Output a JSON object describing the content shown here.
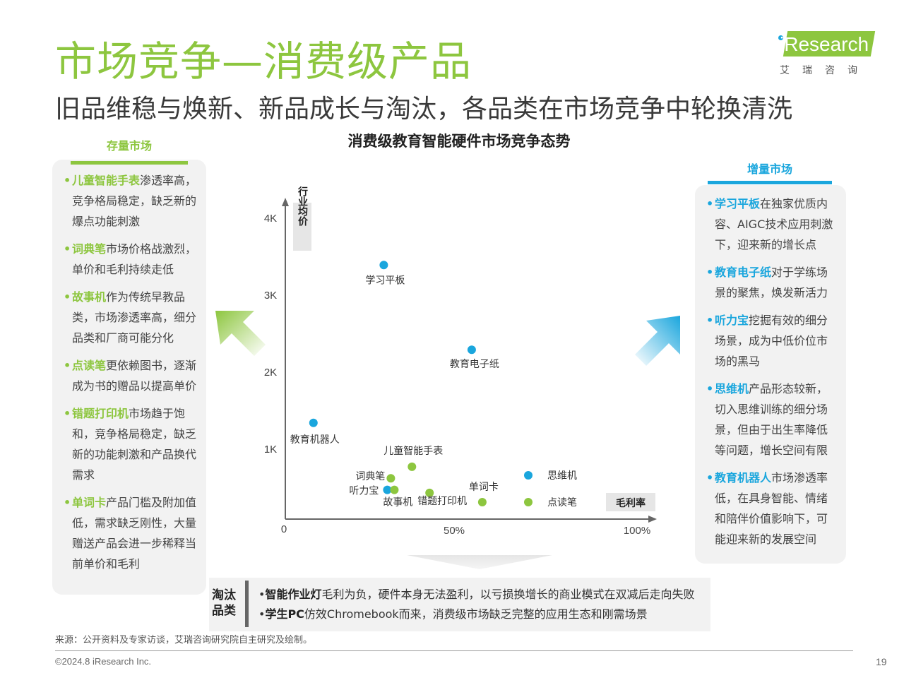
{
  "header": {
    "title": "市场竞争—消费级产品",
    "subtitle": "旧品维稳与焕新、新品成长与淘汰，各品类在市场竞争中轮换清洗"
  },
  "logo": {
    "text": "iResearch",
    "cn": "艾瑞咨询"
  },
  "colors": {
    "green": "#8dc63f",
    "blue": "#1aa6dd",
    "text": "#333333",
    "panel": "#f2f2f2"
  },
  "left_panel": {
    "title": "存量市场",
    "items": [
      {
        "bullet": "•",
        "highlight": "儿童智能手表",
        "text": "渗透率高，竞争格局稳定，缺乏新的爆点功能刺激"
      },
      {
        "bullet": "•",
        "highlight": "词典笔",
        "text": "市场价格战激烈，单价和毛利持续走低"
      },
      {
        "bullet": "•",
        "highlight": "故事机",
        "text": "作为传统早教品类，市场渗透率高，细分品类和厂商可能分化"
      },
      {
        "bullet": "•",
        "highlight": "点读笔",
        "text": "更依赖图书，逐渐成为书的赠品以提高单价"
      },
      {
        "bullet": "•",
        "highlight": "错题打印机",
        "text": "市场趋于饱和，竞争格局稳定，缺乏新的功能刺激和产品换代需求"
      },
      {
        "bullet": "•",
        "highlight": "单词卡",
        "text": "产品门槛及附加值低，需求缺乏刚性，大量赠送产品会进一步稀释当前单价和毛利"
      }
    ]
  },
  "right_panel": {
    "title": "增量市场",
    "items": [
      {
        "bullet": "•",
        "highlight": "学习平板",
        "text": "在独家优质内容、AIGC技术应用刺激下，迎来新的增长点"
      },
      {
        "bullet": "•",
        "highlight": "教育电子纸",
        "text": "对于学练场景的聚焦，焕发新活力"
      },
      {
        "bullet": "•",
        "highlight": "听力宝",
        "text": "挖掘有效的细分场景，成为中低价位市场的黑马"
      },
      {
        "bullet": "•",
        "highlight": "思维机",
        "text": "产品形态较新，切入思维训练的细分场景，但由于出生率降低等问题，增长空间有限"
      },
      {
        "bullet": "•",
        "highlight": "教育机器人",
        "text": "市场渗透率低，在具身智能、情绪和陪伴价值影响下，可能迎来新的发展空间"
      }
    ]
  },
  "chart_data": {
    "type": "scatter",
    "title": "消费级教育智能硬件市场竞争态势",
    "xlabel": "毛利率",
    "ylabel": "行业均价",
    "x_ticks": [
      "0",
      "50%",
      "100%"
    ],
    "y_ticks": [
      "1K",
      "2K",
      "3K",
      "4K"
    ],
    "xlim": [
      0,
      100
    ],
    "ylim": [
      0,
      4000
    ],
    "legend": {
      "position": "bottom-right",
      "entries": [
        "思维机",
        "点读笔"
      ]
    },
    "series": [
      {
        "color": "#1aa6dd",
        "points": [
          {
            "label": "学习平板",
            "x": 28,
            "y": 3300
          },
          {
            "label": "教育电子纸",
            "x": 53,
            "y": 2200
          },
          {
            "label": "教育机器人",
            "x": 8,
            "y": 1250
          },
          {
            "label": "听力宝",
            "x": 29,
            "y": 380
          }
        ]
      },
      {
        "color": "#8dc63f",
        "points": [
          {
            "label": "儿童智能手表",
            "x": 36,
            "y": 680
          },
          {
            "label": "词典笔",
            "x": 30,
            "y": 530
          },
          {
            "label": "故事机",
            "x": 31,
            "y": 380
          },
          {
            "label": "错题打印机",
            "x": 41,
            "y": 340
          },
          {
            "label": "单词卡",
            "x": 56,
            "y": 220
          }
        ]
      }
    ]
  },
  "elimination": {
    "label": "淘汰品类",
    "items": [
      {
        "bullet": "•",
        "highlight": "智能作业灯",
        "text": "毛利为负，硬件本身无法盈利，以亏损换增长的商业模式在双减后走向失败"
      },
      {
        "bullet": "•",
        "highlight": "学生PC",
        "text": "仿效Chromebook而来，消费级市场缺乏完整的应用生态和刚需场景"
      }
    ]
  },
  "footer": {
    "source": "来源：公开资料及专家访谈，艾瑞咨询研究院自主研究及绘制。",
    "copyright": "©2024.8 iResearch Inc.",
    "page": "19"
  }
}
